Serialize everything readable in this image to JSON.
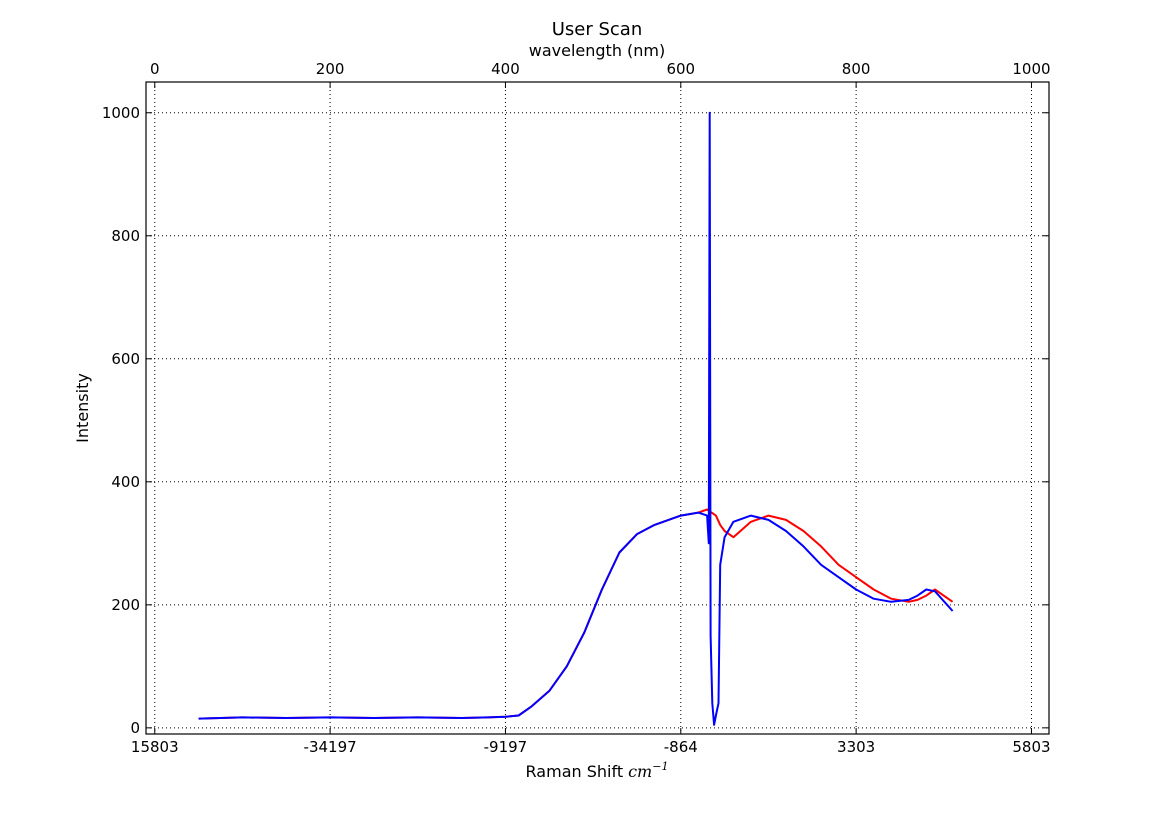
{
  "chart_data": {
    "type": "line",
    "title": "User Scan",
    "top_xlabel": "wavelength (nm)",
    "xlabel": "Raman Shift",
    "xlabel_unit": "cm",
    "xlabel_unit_exp": "−1",
    "ylabel": "Intensity",
    "xlim": [
      -10,
      1020
    ],
    "ylim": [
      -10,
      1050
    ],
    "grid": true,
    "top_ticks": [
      {
        "value": 0,
        "label": "0"
      },
      {
        "value": 200,
        "label": "200"
      },
      {
        "value": 400,
        "label": "400"
      },
      {
        "value": 600,
        "label": "600"
      },
      {
        "value": 800,
        "label": "800"
      },
      {
        "value": 1000,
        "label": "1000"
      }
    ],
    "bottom_ticks": [
      {
        "value": 0,
        "label": "15803"
      },
      {
        "value": 200,
        "label": "-34197"
      },
      {
        "value": 400,
        "label": "-9197"
      },
      {
        "value": 600,
        "label": "-864"
      },
      {
        "value": 800,
        "label": "3303"
      },
      {
        "value": 1000,
        "label": "5803"
      }
    ],
    "y_ticks": [
      {
        "value": 0,
        "label": "0"
      },
      {
        "value": 200,
        "label": "200"
      },
      {
        "value": 400,
        "label": "400"
      },
      {
        "value": 600,
        "label": "600"
      },
      {
        "value": 800,
        "label": "800"
      },
      {
        "value": 1000,
        "label": "1000"
      }
    ],
    "series": [
      {
        "color": "#ff0000",
        "x": [
          50,
          100,
          150,
          200,
          250,
          300,
          350,
          380,
          400,
          415,
          430,
          450,
          470,
          490,
          510,
          530,
          550,
          570,
          590,
          600,
          620,
          630,
          640,
          645,
          650,
          660,
          680,
          700,
          720,
          740,
          760,
          780,
          800,
          820,
          840,
          860,
          870,
          880,
          890,
          910
        ],
        "y": [
          15,
          17,
          16,
          17,
          16,
          17,
          16,
          17,
          18,
          20,
          35,
          60,
          100,
          155,
          225,
          285,
          315,
          330,
          340,
          345,
          350,
          355,
          345,
          330,
          320,
          310,
          335,
          345,
          338,
          320,
          295,
          265,
          245,
          225,
          210,
          205,
          208,
          215,
          225,
          205
        ]
      },
      {
        "color": "#0000ff",
        "x": [
          50,
          100,
          150,
          200,
          250,
          300,
          350,
          380,
          400,
          415,
          430,
          450,
          470,
          490,
          510,
          530,
          550,
          570,
          590,
          600,
          620,
          630,
          632,
          633,
          634,
          636,
          638,
          640,
          643,
          645,
          650,
          660,
          680,
          700,
          720,
          740,
          760,
          780,
          800,
          820,
          840,
          860,
          870,
          880,
          890,
          910
        ],
        "y": [
          15,
          17,
          16,
          17,
          16,
          17,
          16,
          17,
          18,
          20,
          35,
          60,
          100,
          155,
          225,
          285,
          315,
          330,
          340,
          345,
          350,
          345,
          300,
          1000,
          150,
          40,
          5,
          20,
          40,
          265,
          310,
          335,
          345,
          338,
          320,
          295,
          265,
          245,
          225,
          210,
          205,
          208,
          215,
          225,
          222,
          190
        ]
      }
    ]
  }
}
